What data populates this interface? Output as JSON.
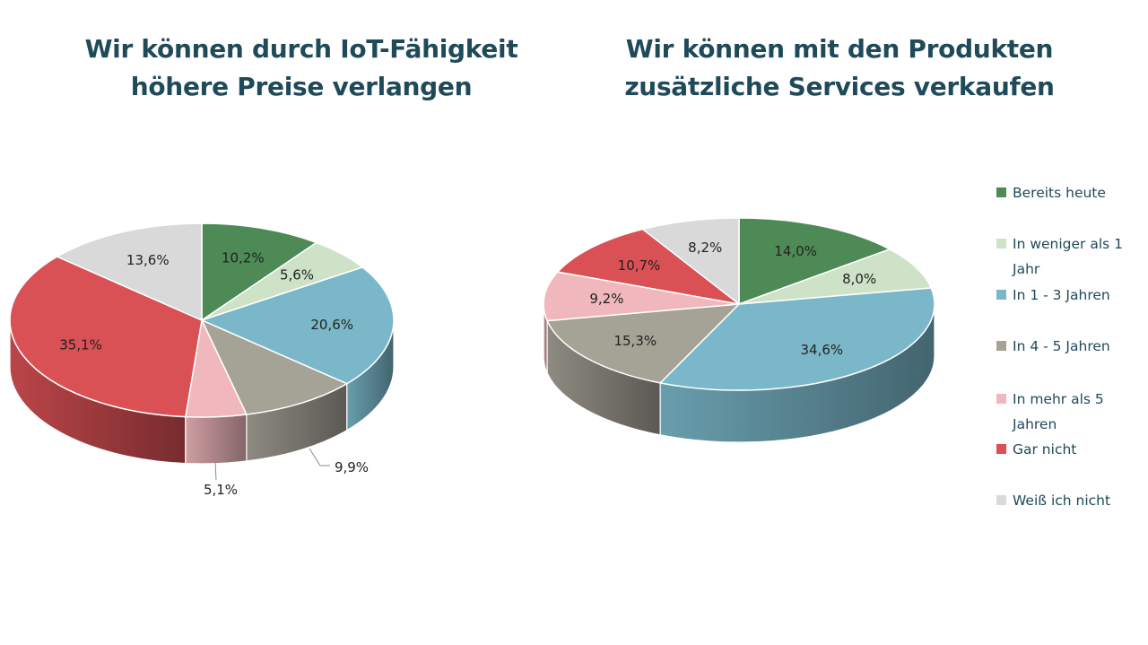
{
  "chart_data": [
    {
      "type": "pie",
      "title_lines": [
        "Wir können durch IoT-Fähigkeit",
        "höhere Preise verlangen"
      ],
      "slices": [
        {
          "category": "Bereits heute",
          "value": 10.2,
          "label": "10,2%"
        },
        {
          "category": "In weniger als 1 Jahr",
          "value": 5.6,
          "label": "5,6%"
        },
        {
          "category": "In 1 - 3 Jahren",
          "value": 20.6,
          "label": "20,6%"
        },
        {
          "category": "In 4 - 5 Jahren",
          "value": 9.9,
          "label": "9,9%"
        },
        {
          "category": "In mehr als 5 Jahren",
          "value": 5.1,
          "label": "5,1%"
        },
        {
          "category": "Gar nicht",
          "value": 35.1,
          "label": "35,1%"
        },
        {
          "category": "Weiß ich nicht",
          "value": 13.6,
          "label": "13,6%"
        }
      ]
    },
    {
      "type": "pie",
      "title_lines": [
        "Wir können mit den Produkten",
        "zusätzliche Services verkaufen"
      ],
      "slices": [
        {
          "category": "Bereits heute",
          "value": 14.0,
          "label": "14,0%"
        },
        {
          "category": "In weniger als 1 Jahr",
          "value": 8.0,
          "label": "8,0%"
        },
        {
          "category": "In 1 - 3 Jahren",
          "value": 34.6,
          "label": "34,6%"
        },
        {
          "category": "In 4 - 5 Jahren",
          "value": 15.3,
          "label": "15,3%"
        },
        {
          "category": "In mehr als 5 Jahren",
          "value": 9.2,
          "label": "9,2%"
        },
        {
          "category": "Gar nicht",
          "value": 10.7,
          "label": "10,7%"
        },
        {
          "category": "Weiß ich nicht",
          "value": 8.2,
          "label": "8,2%"
        }
      ]
    }
  ],
  "legend": {
    "placement": "right",
    "items": [
      {
        "label_lines": [
          "Bereits heute"
        ],
        "color": "#4e8a55"
      },
      {
        "label_lines": [
          "In weniger als 1",
          "Jahr"
        ],
        "color": "#cde2c6"
      },
      {
        "label_lines": [
          "In 1 - 3 Jahren"
        ],
        "color": "#7ab8c9"
      },
      {
        "label_lines": [
          "In 4 - 5 Jahren"
        ],
        "color": "#a5a296"
      },
      {
        "label_lines": [
          "In mehr als 5",
          "Jahren"
        ],
        "color": "#f0b8bc"
      },
      {
        "label_lines": [
          "Gar nicht"
        ],
        "color": "#d95055"
      },
      {
        "label_lines": [
          "Weiß ich nicht"
        ],
        "color": "#d9d9d9"
      }
    ]
  }
}
